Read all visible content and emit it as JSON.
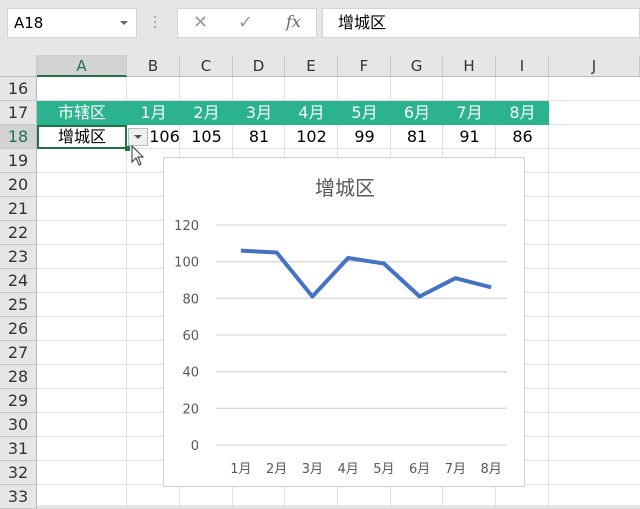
{
  "name_box": {
    "value": "A18"
  },
  "formula_bar": {
    "cancel_icon": "✕",
    "enter_icon": "✓",
    "fx_label": "fx",
    "value": "增城区"
  },
  "columns": [
    "A",
    "B",
    "C",
    "D",
    "E",
    "F",
    "G",
    "H",
    "I",
    "J"
  ],
  "rows": [
    "16",
    "17",
    "18",
    "19",
    "20",
    "21",
    "22",
    "23",
    "24",
    "25",
    "26",
    "27",
    "28",
    "29",
    "30",
    "31",
    "32",
    "33"
  ],
  "table": {
    "header": [
      "市辖区",
      "1月",
      "2月",
      "3月",
      "4月",
      "5月",
      "6月",
      "7月",
      "8月"
    ],
    "row": [
      "增城区",
      "106",
      "105",
      "81",
      "102",
      "99",
      "81",
      "91",
      "86"
    ],
    "header_color": "#2bb28e"
  },
  "chart_data": {
    "type": "line",
    "title": "增城区",
    "categories": [
      "1月",
      "2月",
      "3月",
      "4月",
      "5月",
      "6月",
      "7月",
      "8月"
    ],
    "values": [
      106,
      105,
      81,
      102,
      99,
      81,
      91,
      86
    ],
    "ylim": [
      0,
      120
    ],
    "yticks": [
      "0",
      "20",
      "40",
      "60",
      "80",
      "100",
      "120"
    ],
    "grid": true,
    "line_color": "#4472c4"
  }
}
